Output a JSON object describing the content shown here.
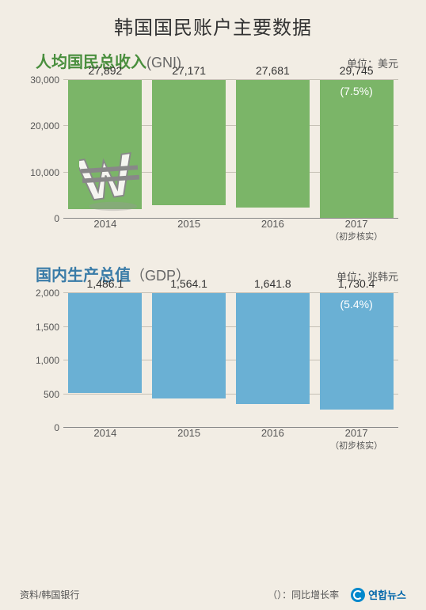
{
  "main_title": "韩国国民账户主要数据",
  "gni": {
    "title": "人均国民总收入",
    "abbr": "(GNI)",
    "unit": "单位：美元",
    "title_color": "#4a8f3e",
    "bar_color": "#7bb568",
    "ylim": [
      0,
      30000
    ],
    "yticks": [
      0,
      10000,
      20000,
      30000
    ],
    "ytick_labels": [
      "0",
      "10,000",
      "20,000",
      "30,000"
    ],
    "categories": [
      "2014",
      "2015",
      "2016",
      "2017"
    ],
    "values": [
      27892,
      27171,
      27681,
      29745
    ],
    "value_labels": [
      "27,892",
      "27,171",
      "27,681",
      "29,745"
    ],
    "pct_labels": [
      "",
      "",
      "",
      "(7.5%)"
    ],
    "x_note_last": "（初步核实）"
  },
  "gdp": {
    "title": "国内生产总值",
    "abbr": "（GDP）",
    "unit": "单位：兆韩元",
    "title_color": "#3a7ca8",
    "bar_color": "#6ab0d4",
    "ylim": [
      0,
      2000
    ],
    "yticks": [
      0,
      500,
      1000,
      1500,
      2000
    ],
    "ytick_labels": [
      "0",
      "500",
      "1,000",
      "1,500",
      "2,000"
    ],
    "categories": [
      "2014",
      "2015",
      "2016",
      "2017"
    ],
    "values": [
      1486.1,
      1564.1,
      1641.8,
      1730.4
    ],
    "value_labels": [
      "1,486.1",
      "1,564.1",
      "1,641.8",
      "1,730.4"
    ],
    "pct_labels": [
      "",
      "",
      "",
      "(5.4%)"
    ],
    "x_note_last": "（初步核实）"
  },
  "footer": {
    "source": "资料/韩国银行",
    "pct_note": "（）：同比增长率",
    "logo_text": "연합뉴스"
  },
  "style": {
    "background": "#f2ede4",
    "grid_color": "#c5c0b5",
    "text_color": "#555"
  }
}
